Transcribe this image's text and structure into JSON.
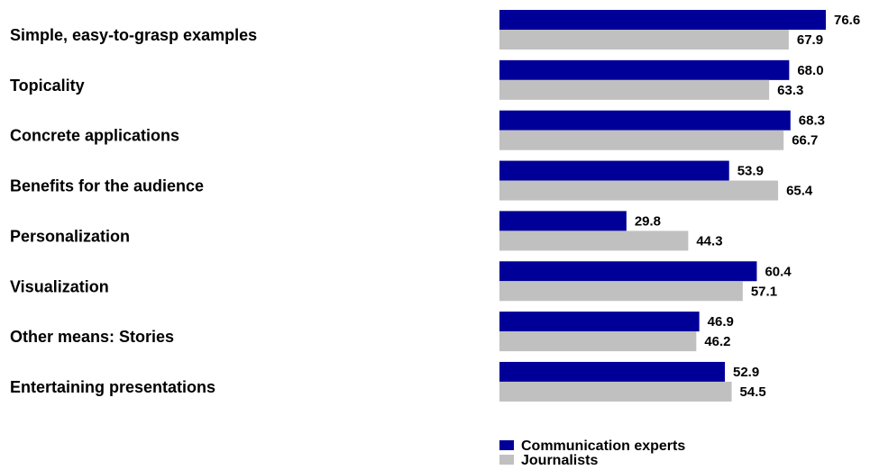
{
  "chart_data": {
    "type": "bar",
    "orientation": "horizontal",
    "categories": [
      "Simple, easy-to-grasp examples",
      "Topicality",
      "Concrete applications",
      "Benefits for the audience",
      "Personalization",
      "Visualization",
      "Other means: Stories",
      "Entertaining presentations"
    ],
    "series": [
      {
        "name": "Communication experts",
        "color": "#000099",
        "values": [
          76.6,
          68.0,
          68.3,
          53.9,
          29.8,
          60.4,
          46.9,
          52.9
        ],
        "labels": [
          "76.6",
          "68.0",
          "68.3",
          "53.9",
          "29.8",
          "60.4",
          "46.9",
          "52.9"
        ]
      },
      {
        "name": "Journalists",
        "color": "#c0c0c0",
        "values": [
          67.9,
          63.3,
          66.7,
          65.4,
          44.3,
          57.1,
          46.2,
          54.5
        ],
        "labels": [
          "67.9",
          "63.3",
          "66.7",
          "65.4",
          "44.3",
          "57.1",
          "46.2",
          "54.5"
        ]
      }
    ],
    "xlim": [
      0,
      100
    ],
    "grid": false,
    "axis_visible": false,
    "legend_position": "bottom"
  }
}
